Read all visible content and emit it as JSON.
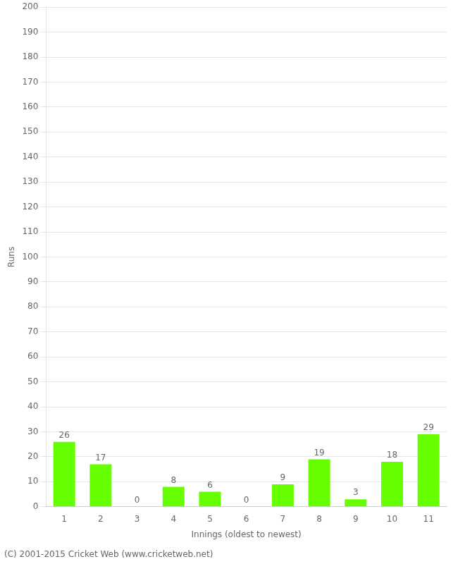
{
  "chart_data": {
    "type": "bar",
    "categories": [
      "1",
      "2",
      "3",
      "4",
      "5",
      "6",
      "7",
      "8",
      "9",
      "10",
      "11"
    ],
    "values": [
      26,
      17,
      0,
      8,
      6,
      0,
      9,
      19,
      3,
      18,
      29
    ],
    "color": "#66ff00",
    "xlabel": "Innings (oldest to newest)",
    "ylabel": "Runs",
    "ylim": [
      0,
      200
    ],
    "yticks": [
      0,
      10,
      20,
      30,
      40,
      50,
      60,
      70,
      80,
      90,
      100,
      110,
      120,
      130,
      140,
      150,
      160,
      170,
      180,
      190,
      200
    ],
    "grid": true,
    "data_labels": true,
    "footer": "(C) 2001-2015 Cricket Web (www.cricketweb.net)"
  }
}
